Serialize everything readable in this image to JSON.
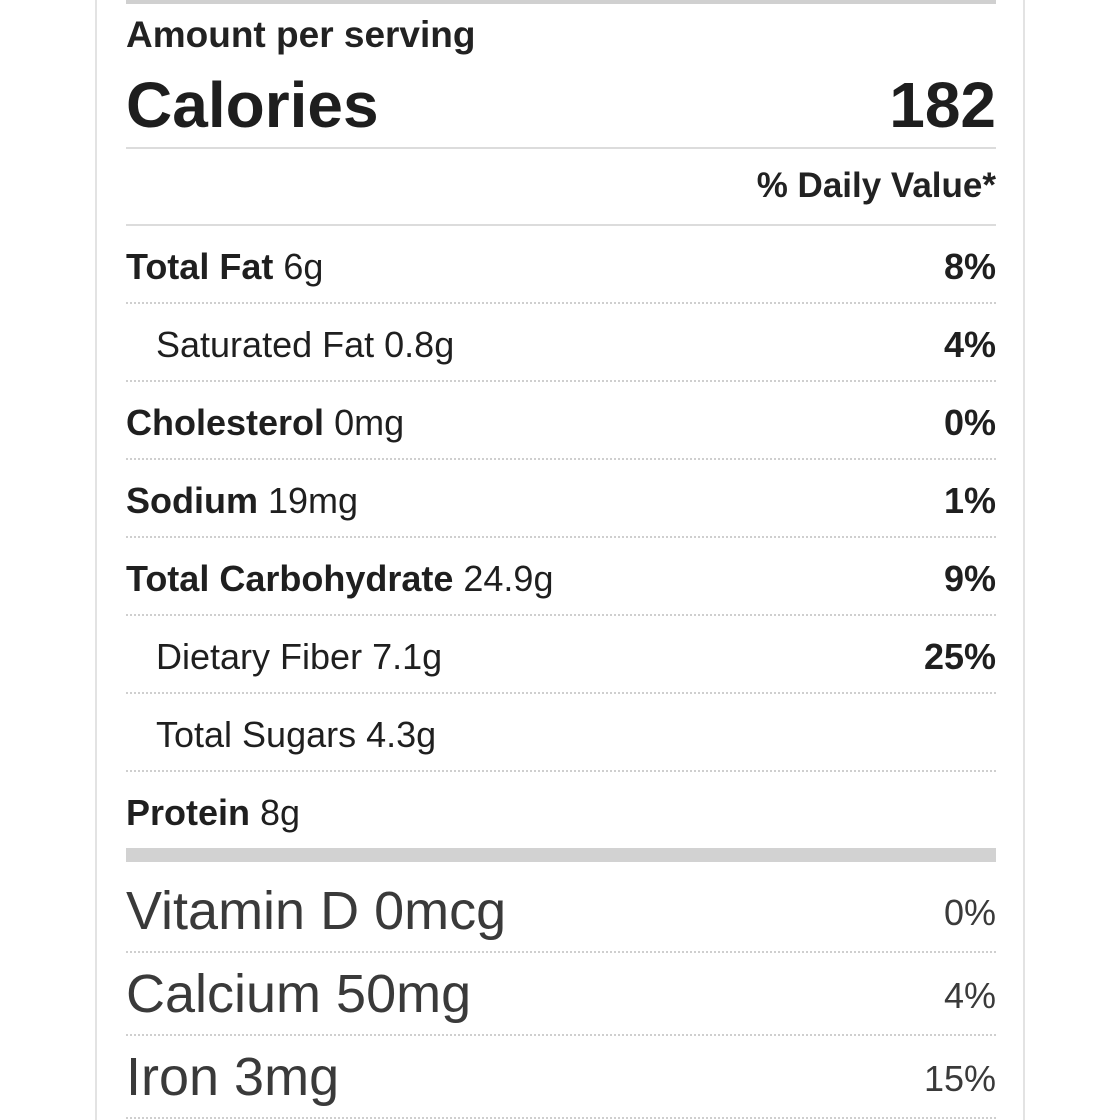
{
  "header": {
    "amount_per_serving": "Amount per serving",
    "calories_label": "Calories",
    "calories_value": "182",
    "daily_value_header": "% Daily Value*"
  },
  "nutrients": [
    {
      "name": "Total Fat",
      "amount": "6g",
      "pct": "8%",
      "sub": false
    },
    {
      "name": "Saturated Fat",
      "amount": "0.8g",
      "pct": "4%",
      "sub": true
    },
    {
      "name": "Cholesterol",
      "amount": "0mg",
      "pct": "0%",
      "sub": false
    },
    {
      "name": "Sodium",
      "amount": "19mg",
      "pct": "1%",
      "sub": false
    },
    {
      "name": "Total Carbohydrate",
      "amount": "24.9g",
      "pct": "9%",
      "sub": false
    },
    {
      "name": "Dietary Fiber",
      "amount": "7.1g",
      "pct": "25%",
      "sub": true
    },
    {
      "name": "Total Sugars",
      "amount": "4.3g",
      "pct": "",
      "sub": true
    },
    {
      "name": "Protein",
      "amount": "8g",
      "pct": "",
      "sub": false
    }
  ],
  "vitamins": [
    {
      "label": "Vitamin D 0mcg",
      "pct": "0%"
    },
    {
      "label": "Calcium 50mg",
      "pct": "4%"
    },
    {
      "label": "Iron 3mg",
      "pct": "15%"
    }
  ]
}
